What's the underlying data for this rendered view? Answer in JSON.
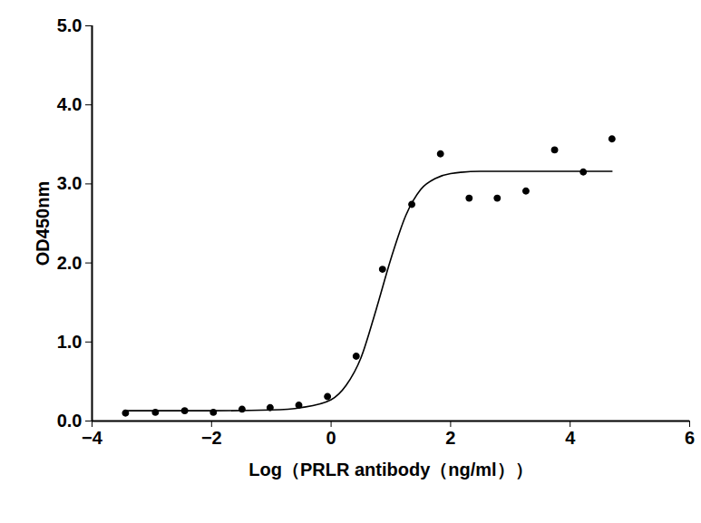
{
  "chart_data": {
    "type": "scatter",
    "x_label": "Log（PRLR antibody（ng/ml））",
    "y_label": "OD450nm",
    "xlim": [
      -4,
      6
    ],
    "xticks": [
      -4,
      -2,
      0,
      2,
      4,
      6
    ],
    "ylim": [
      0,
      5
    ],
    "yticks": [
      0,
      1,
      2,
      3,
      4,
      5
    ],
    "grid": false,
    "series": [
      {
        "type": "scatter",
        "marker": "circle",
        "color": "#000000",
        "x": [
          -3.44,
          -2.94,
          -2.45,
          -1.97,
          -1.49,
          -1.02,
          -0.54,
          -0.06,
          0.42,
          0.86,
          1.35,
          1.83,
          2.31,
          2.78,
          3.26,
          3.74,
          4.22,
          4.7
        ],
        "values": [
          0.1,
          0.11,
          0.13,
          0.11,
          0.15,
          0.17,
          0.2,
          0.31,
          0.82,
          1.92,
          2.74,
          3.38,
          2.82,
          2.82,
          2.91,
          3.43,
          3.15,
          3.57
        ]
      },
      {
        "type": "line",
        "line_style": "solid",
        "color": "#000000",
        "x": [
          -3.44,
          -2.0,
          -1.0,
          -0.5,
          0.0,
          0.25,
          0.5,
          0.75,
          1.0,
          1.25,
          1.5,
          1.75,
          2.0,
          2.5,
          3.0,
          4.0,
          4.7
        ],
        "values": [
          0.13,
          0.13,
          0.14,
          0.17,
          0.27,
          0.45,
          0.8,
          1.4,
          2.05,
          2.6,
          2.93,
          3.07,
          3.13,
          3.16,
          3.16,
          3.16,
          3.16
        ]
      }
    ]
  }
}
